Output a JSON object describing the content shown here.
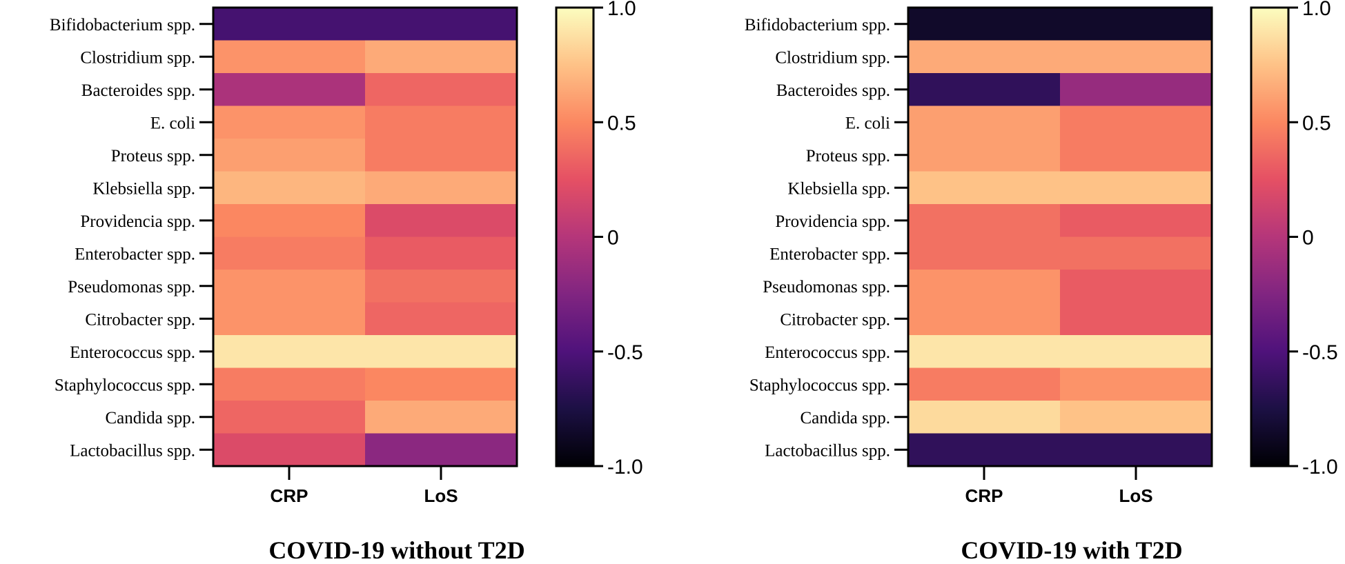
{
  "chart_data": [
    {
      "type": "heatmap",
      "title": "COVID-19 without T2D",
      "columns": [
        "CRP",
        "LoS"
      ],
      "rows": [
        "Bifidobacterium spp.",
        "Clostridium spp.",
        "Bacteroides spp.",
        "E. coli",
        "Proteus spp.",
        "Klebsiella spp.",
        "Providencia spp.",
        "Enterobacter spp.",
        "Pseudomonas spp.",
        "Citrobacter spp.",
        "Enterococcus spp.",
        "Staphylococcus spp.",
        "Candida spp.",
        "Lactobacillus spp."
      ],
      "values": [
        [
          -0.55,
          -0.55
        ],
        [
          0.55,
          0.65
        ],
        [
          -0.05,
          0.35
        ],
        [
          0.55,
          0.45
        ],
        [
          0.6,
          0.45
        ],
        [
          0.7,
          0.65
        ],
        [
          0.5,
          0.2
        ],
        [
          0.45,
          0.3
        ],
        [
          0.55,
          0.4
        ],
        [
          0.55,
          0.35
        ],
        [
          0.9,
          0.9
        ],
        [
          0.45,
          0.5
        ],
        [
          0.35,
          0.65
        ],
        [
          0.2,
          -0.2
        ]
      ],
      "colorbar": {
        "range": [
          -1.0,
          1.0
        ],
        "ticks": [
          "1.0",
          "0.5",
          "0",
          "-0.5",
          "-1.0"
        ]
      }
    },
    {
      "type": "heatmap",
      "title": "COVID-19 with T2D",
      "columns": [
        "CRP",
        "LoS"
      ],
      "rows": [
        "Bifidobacterium spp.",
        "Clostridium spp.",
        "Bacteroides spp.",
        "E. coli",
        "Proteus spp.",
        "Klebsiella spp.",
        "Providencia spp.",
        "Enterobacter spp.",
        "Pseudomonas spp.",
        "Citrobacter spp.",
        "Enterococcus spp.",
        "Staphylococcus spp.",
        "Candida spp.",
        "Lactobacillus spp."
      ],
      "values": [
        [
          -0.85,
          -0.85
        ],
        [
          0.65,
          0.65
        ],
        [
          -0.65,
          -0.15
        ],
        [
          0.6,
          0.45
        ],
        [
          0.6,
          0.45
        ],
        [
          0.75,
          0.75
        ],
        [
          0.4,
          0.3
        ],
        [
          0.4,
          0.4
        ],
        [
          0.55,
          0.3
        ],
        [
          0.55,
          0.3
        ],
        [
          0.9,
          0.9
        ],
        [
          0.45,
          0.55
        ],
        [
          0.85,
          0.75
        ],
        [
          -0.65,
          -0.65
        ]
      ],
      "colorbar": {
        "range": [
          -1.0,
          1.0
        ],
        "ticks": [
          "1.0",
          "0.5",
          "0",
          "-0.5",
          "-1.0"
        ]
      }
    }
  ]
}
